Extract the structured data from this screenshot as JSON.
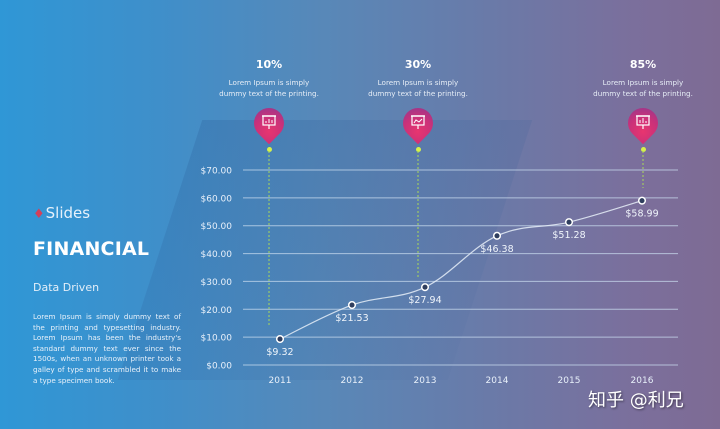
{
  "slide": {
    "logo": {
      "mark": "&",
      "text": "Slides"
    },
    "title": "FINANCIAL",
    "subtitle": "Data Driven",
    "description": "Lorem Ipsum is simply dummy text of the printing and typesetting industry. Lorem Ipsum has been the industry's standard dummy text ever since the 1500s, when an unknown printer took a galley of type and scrambled it to make a type specimen book."
  },
  "callouts": [
    {
      "percent": "10%",
      "text_line1": "Lorem Ipsum is simply",
      "text_line2": "dummy text of the printing.",
      "icon": "presentation-chart-icon",
      "year": "2011"
    },
    {
      "percent": "30%",
      "text_line1": "Lorem Ipsum is simply",
      "text_line2": "dummy text of the printing.",
      "icon": "presentation-chart-icon",
      "year": "2013"
    },
    {
      "percent": "85%",
      "text_line1": "Lorem Ipsum is simply",
      "text_line2": "dummy text of the printing.",
      "icon": "presentation-chart-icon",
      "year": "2016"
    }
  ],
  "colors": {
    "bg_left": "#2f97d6",
    "bg_right": "#7e6b94",
    "pin_pink": "#e8356f",
    "pin_purple": "#8a3a92",
    "dot_green": "#d6f24a",
    "gridline": "#c9dcef",
    "line": "#e6eef8"
  },
  "chart_data": {
    "type": "line",
    "title": "",
    "xlabel": "",
    "ylabel": "",
    "categories": [
      "2011",
      "2012",
      "2013",
      "2014",
      "2015",
      "2016"
    ],
    "values": [
      9.32,
      21.53,
      27.94,
      46.38,
      51.28,
      58.99
    ],
    "data_labels": [
      "$9.32",
      "$21.53",
      "$27.94",
      "$46.38",
      "$51.28",
      "$58.99"
    ],
    "y_ticks": [
      "$0.00",
      "$10.00",
      "$20.00",
      "$30.00",
      "$40.00",
      "$50.00",
      "$60.00",
      "$70.00"
    ],
    "ylim": [
      0,
      70
    ],
    "grid": true,
    "legend": "none",
    "smooth": true
  },
  "watermark": "知乎 @利兄"
}
